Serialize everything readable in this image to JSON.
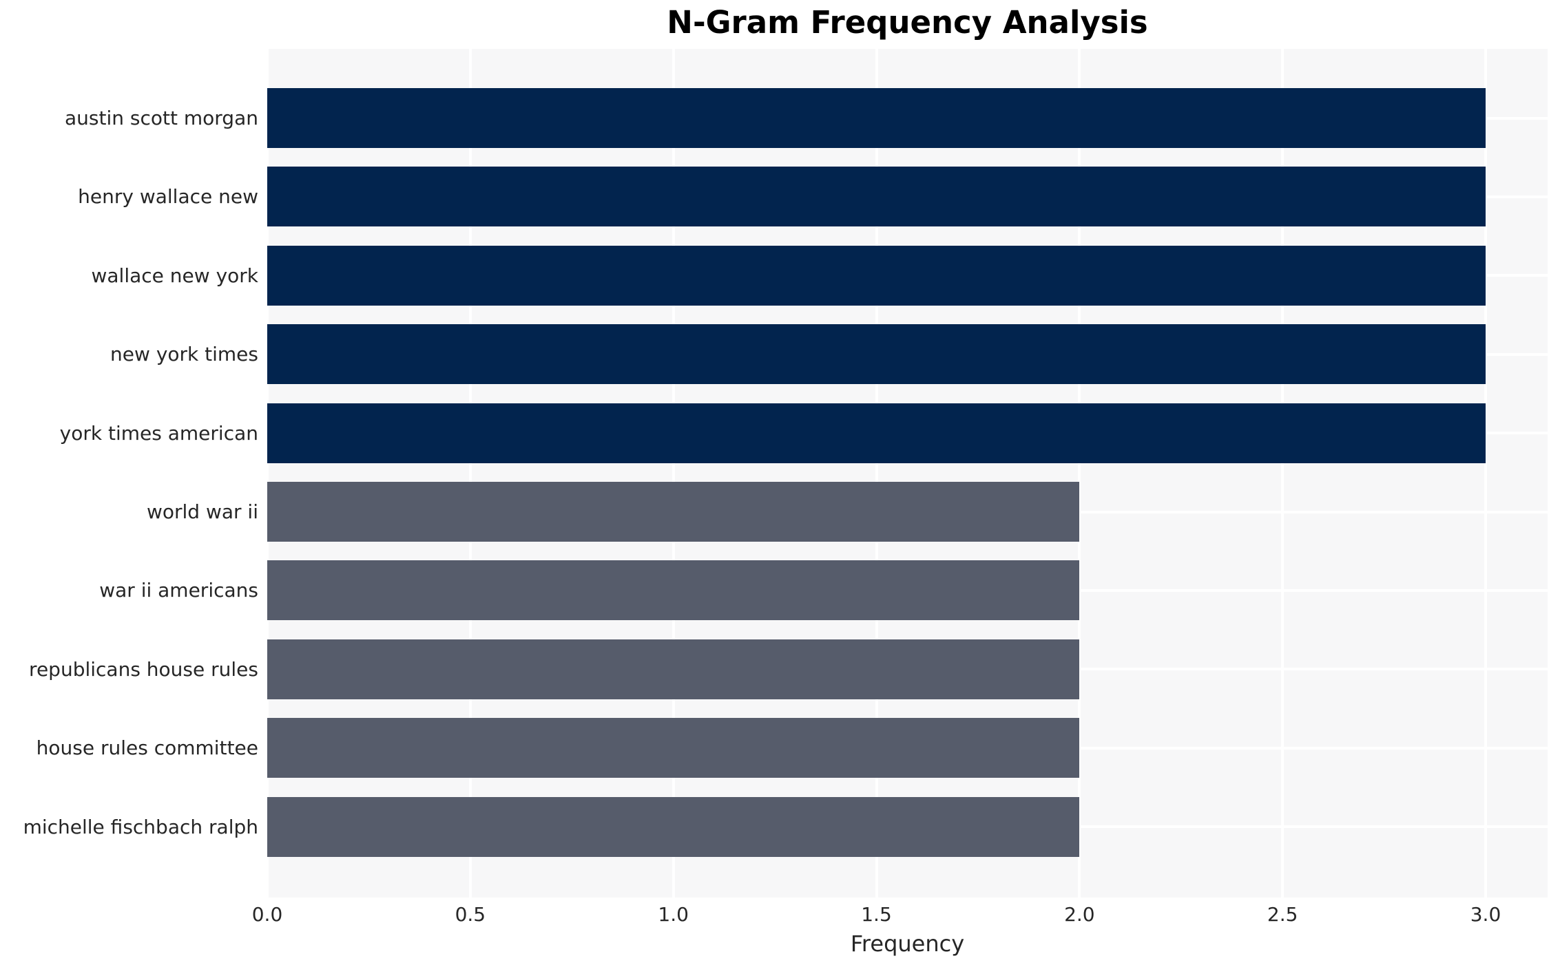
{
  "chart_data": {
    "type": "bar",
    "orientation": "horizontal",
    "title": "N-Gram Frequency Analysis",
    "xlabel": "Frequency",
    "ylabel": "",
    "categories": [
      "austin scott morgan",
      "henry wallace new",
      "wallace new york",
      "new york times",
      "york times american",
      "world war ii",
      "war ii americans",
      "republicans house rules",
      "house rules committee",
      "michelle fischbach ralph"
    ],
    "values": [
      3,
      3,
      3,
      3,
      3,
      2,
      2,
      2,
      2,
      2
    ],
    "xlim": [
      0,
      3.15
    ],
    "xtick_labels": [
      "0.0",
      "0.5",
      "1.0",
      "1.5",
      "2.0",
      "2.5",
      "3.0"
    ],
    "grid": true,
    "legend": false,
    "colors": {
      "bar_high": "#02244e",
      "bar_low": "#565c6b",
      "high_threshold": 3,
      "plot_background": "#f7f7f8",
      "gridline": "#ffffff",
      "tick_text": "#262626",
      "title_text": "#000000",
      "figure_background": "#ffffff"
    }
  }
}
